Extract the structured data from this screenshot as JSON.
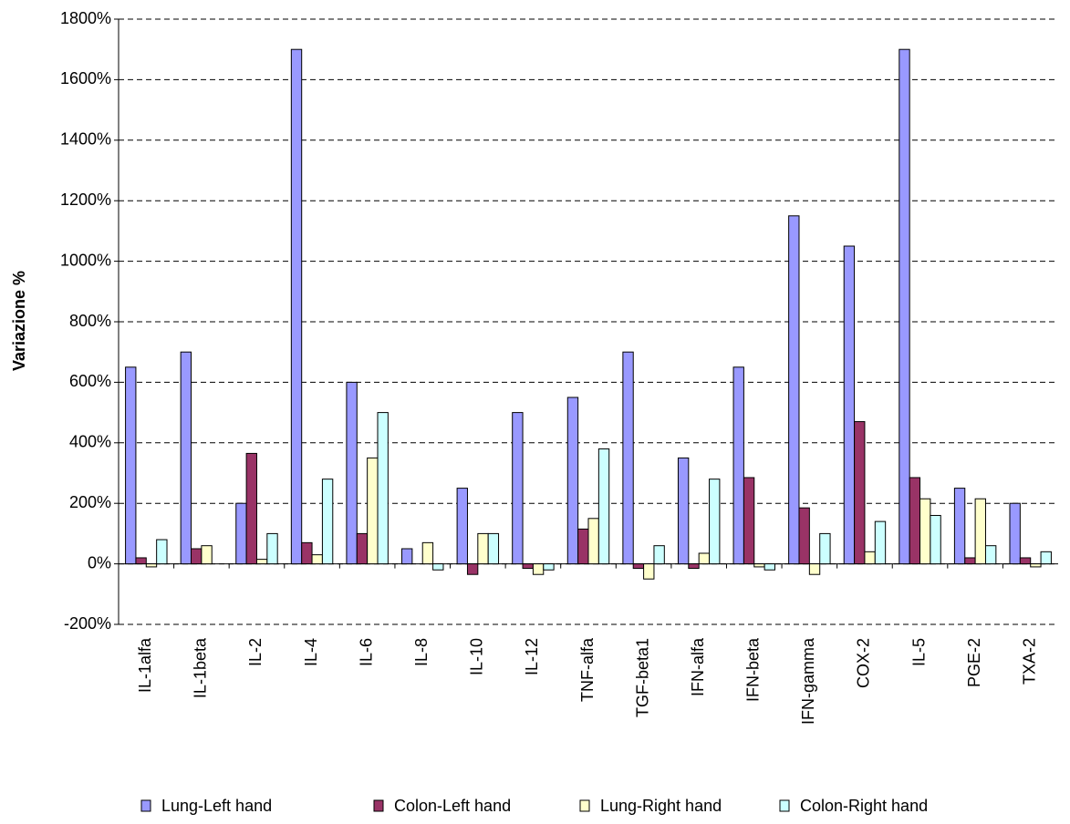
{
  "chart_data": {
    "type": "bar",
    "y_label": "Variazione %",
    "categories": [
      "IL-1alfa",
      "IL-1beta",
      "IL-2",
      "IL-4",
      "IL-6",
      "IL-8",
      "IL-10",
      "IL-12",
      "TNF-alfa",
      "TGF-beta1",
      "IFN-alfa",
      "IFN-beta",
      "IFN-gamma",
      "COX-2",
      "IL-5",
      "PGE-2",
      "TXA-2"
    ],
    "series": [
      {
        "name": "Lung-Left hand",
        "color": "#9999ff",
        "values": [
          650,
          700,
          200,
          1700,
          600,
          50,
          250,
          500,
          550,
          700,
          350,
          650,
          1150,
          1050,
          1700,
          250,
          200
        ]
      },
      {
        "name": "Colon-Left hand",
        "color": "#993366",
        "values": [
          20,
          50,
          365,
          70,
          100,
          0,
          -35,
          -15,
          115,
          -15,
          -15,
          285,
          185,
          470,
          285,
          20,
          20
        ]
      },
      {
        "name": "Lung-Right hand",
        "color": "#ffffcc",
        "values": [
          -10,
          60,
          15,
          30,
          350,
          70,
          100,
          -35,
          150,
          -50,
          35,
          -10,
          -35,
          40,
          215,
          215,
          -10
        ]
      },
      {
        "name": "Colon-Right hand",
        "color": "#ccffff",
        "values": [
          80,
          0,
          100,
          280,
          500,
          -20,
          100,
          -20,
          380,
          60,
          280,
          -20,
          100,
          140,
          160,
          60,
          40
        ]
      }
    ],
    "ylim": [
      -200,
      1800
    ],
    "yticks": [
      {
        "value": -200,
        "label": "-200%"
      },
      {
        "value": 0,
        "label": "0%"
      },
      {
        "value": 200,
        "label": "200%"
      },
      {
        "value": 400,
        "label": "400%"
      },
      {
        "value": 600,
        "label": "600%"
      },
      {
        "value": 800,
        "label": "800%"
      },
      {
        "value": 1000,
        "label": "1000%"
      },
      {
        "value": 1200,
        "label": "1200%"
      },
      {
        "value": 1400,
        "label": "1400%"
      },
      {
        "value": 1600,
        "label": "1600%"
      },
      {
        "value": 1800,
        "label": "1800%"
      }
    ],
    "grid": true
  }
}
